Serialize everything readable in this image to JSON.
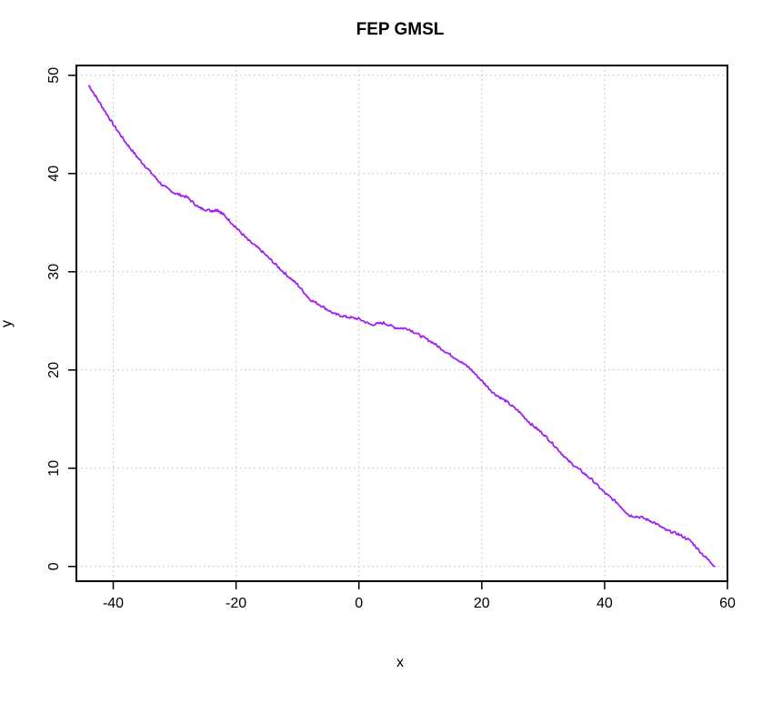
{
  "chart_data": {
    "type": "line",
    "title": "FEP GMSL",
    "xlabel": "x",
    "ylabel": "y",
    "xlim": [
      -46,
      60
    ],
    "ylim": [
      -1.5,
      51
    ],
    "xticks": [
      -40,
      -20,
      0,
      20,
      40,
      60
    ],
    "yticks": [
      0,
      10,
      20,
      30,
      40,
      50
    ],
    "grid": true,
    "line_color": "#a020f0",
    "series": [
      {
        "x": [
          -44,
          -42,
          -40,
          -38,
          -36,
          -34,
          -32,
          -30,
          -28,
          -26,
          -24,
          -23,
          -22,
          -20,
          -18,
          -16,
          -14,
          -12,
          -10,
          -8,
          -6,
          -4,
          -2,
          0,
          2,
          4,
          6,
          8,
          10,
          12,
          14,
          16,
          18,
          20,
          22,
          24,
          26,
          28,
          30,
          32,
          34,
          36,
          38,
          40,
          42,
          44,
          46,
          48,
          50,
          52,
          54,
          56,
          58
        ],
        "y": [
          49,
          47,
          45,
          43.2,
          41.6,
          40.2,
          38.8,
          38,
          37.6,
          36.5,
          36.2,
          36.3,
          35.8,
          34.5,
          33.2,
          32.2,
          31,
          29.8,
          28.7,
          27.2,
          26.5,
          25.7,
          25.4,
          25.2,
          24.6,
          24.8,
          24.3,
          24.2,
          23.5,
          22.8,
          21.9,
          21.1,
          20.2,
          18.9,
          17.6,
          16.8,
          15.8,
          14.5,
          13.5,
          12.2,
          10.8,
          9.8,
          8.8,
          7.5,
          6.5,
          5.2,
          5,
          4.5,
          3.7,
          3.3,
          2.6,
          1.2,
          0
        ]
      }
    ]
  }
}
